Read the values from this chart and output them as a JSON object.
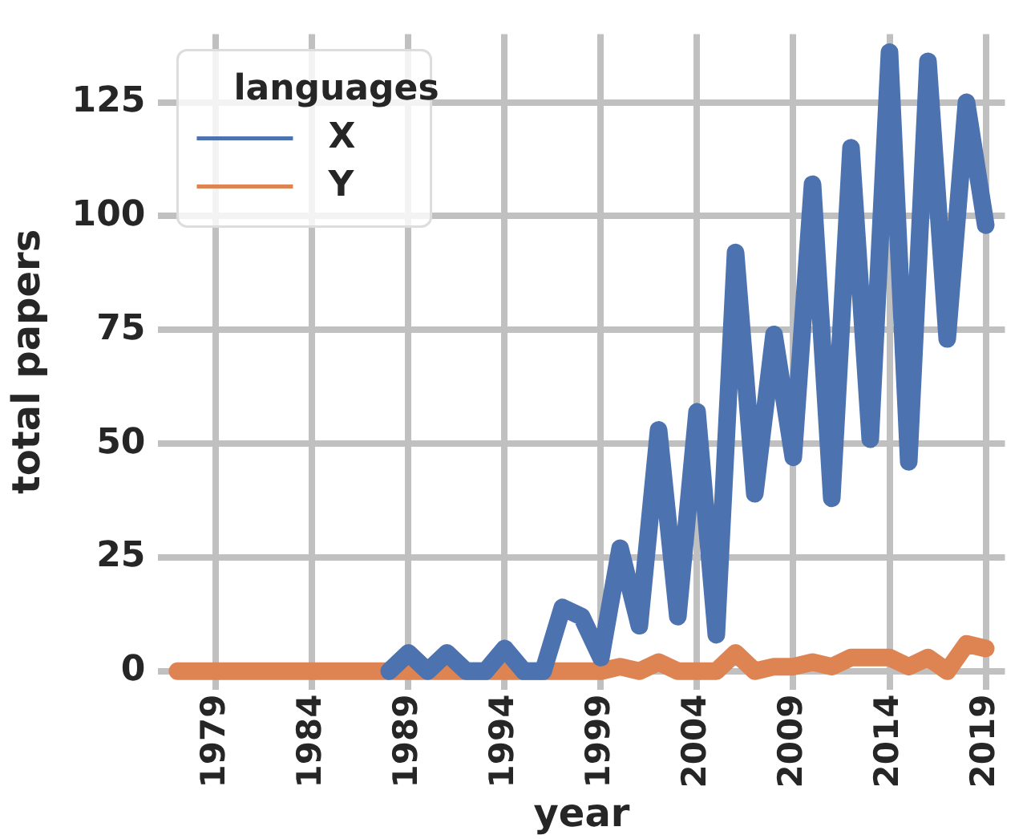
{
  "chart_data": {
    "type": "line",
    "xlabel": "year",
    "ylabel": "total papers",
    "legend_title": "languages",
    "x": [
      1977,
      1978,
      1979,
      1980,
      1981,
      1982,
      1983,
      1984,
      1985,
      1986,
      1987,
      1988,
      1989,
      1990,
      1991,
      1992,
      1993,
      1994,
      1995,
      1996,
      1997,
      1998,
      1999,
      2000,
      2001,
      2002,
      2003,
      2004,
      2005,
      2006,
      2007,
      2008,
      2009,
      2010,
      2011,
      2012,
      2013,
      2014,
      2015,
      2016,
      2017,
      2018,
      2019
    ],
    "series": [
      {
        "name": "X",
        "color": "#4c72b0",
        "values": [
          null,
          null,
          null,
          null,
          null,
          null,
          null,
          null,
          null,
          null,
          null,
          0,
          4,
          0,
          4,
          0,
          0,
          5,
          0,
          0,
          14,
          12,
          3,
          27,
          10,
          53,
          12,
          57,
          8,
          92,
          39,
          74,
          47,
          107,
          38,
          115,
          51,
          136,
          46,
          134,
          73,
          125,
          98
        ]
      },
      {
        "name": "Y",
        "color": "#dd8452",
        "values": [
          0,
          0,
          0,
          0,
          0,
          0,
          0,
          0,
          0,
          0,
          0,
          0,
          0,
          0,
          0,
          0,
          0,
          0,
          0,
          0,
          0,
          0,
          0,
          1,
          0,
          2,
          0,
          0,
          0,
          4,
          0,
          1,
          1,
          2,
          1,
          3,
          3,
          3,
          1,
          3,
          0,
          6,
          5
        ]
      }
    ],
    "xlim": [
      1976,
      2020
    ],
    "xticks": [
      1979,
      1984,
      1989,
      1994,
      1999,
      2004,
      2009,
      2014,
      2019
    ],
    "ylim": [
      -4,
      140
    ],
    "yticks": [
      0,
      25,
      50,
      75,
      100,
      125
    ],
    "grid": true,
    "legend": "top left",
    "line_style": "solid",
    "marker": "none"
  }
}
